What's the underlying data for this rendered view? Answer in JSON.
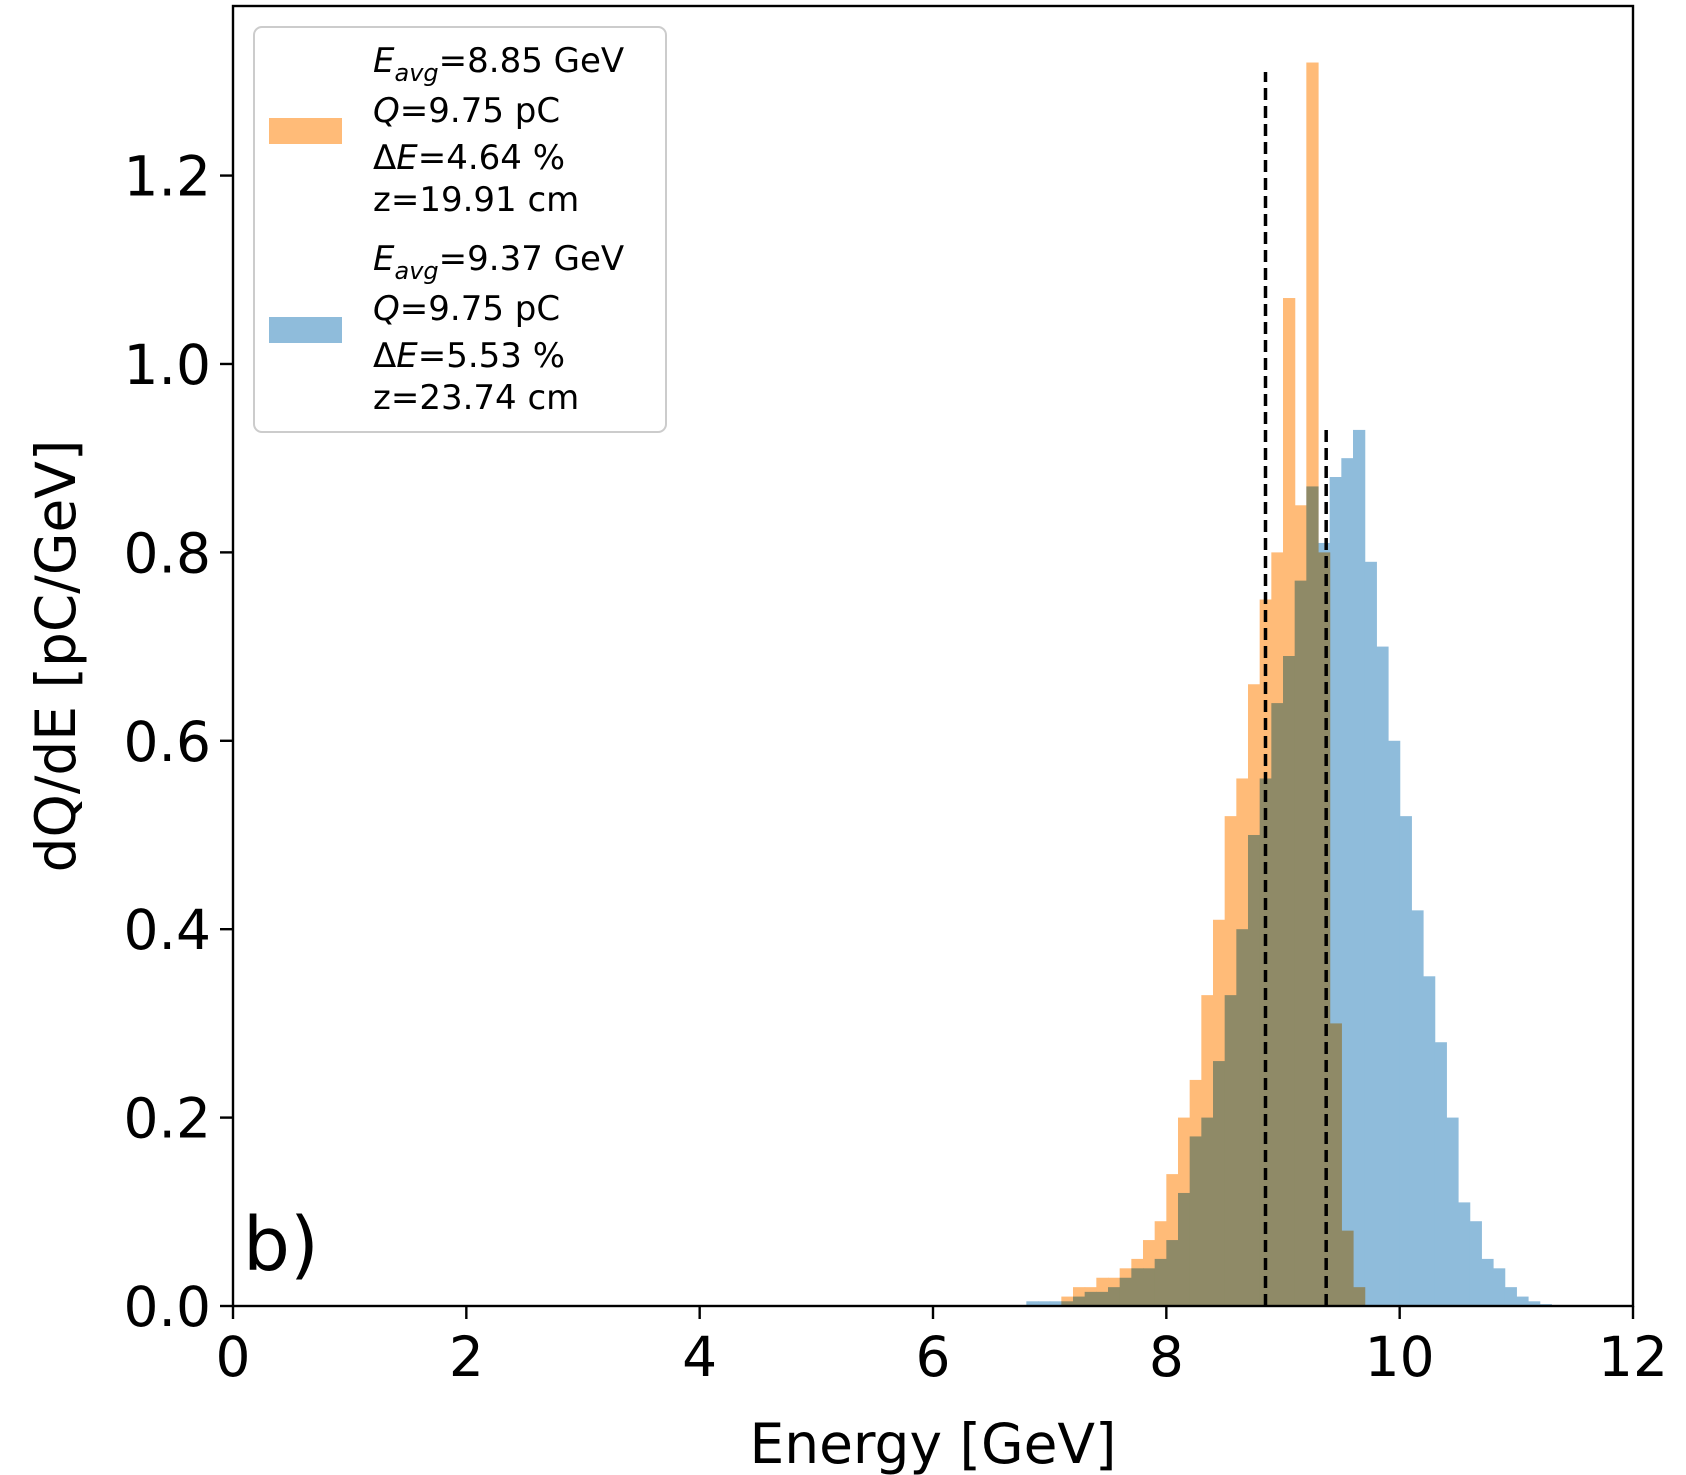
{
  "chart_data": {
    "type": "histogram",
    "panel_label": "b)",
    "xlabel": "Energy [GeV]",
    "ylabel": "dQ/dE [pC/GeV]",
    "xlim": [
      0,
      12
    ],
    "ylim": [
      0,
      1.38
    ],
    "xticks": [
      0,
      2,
      4,
      6,
      8,
      10,
      12
    ],
    "yticks": [
      0.0,
      0.2,
      0.4,
      0.6,
      0.8,
      1.0,
      1.2
    ],
    "xtick_labels": [
      "0",
      "2",
      "4",
      "6",
      "8",
      "10",
      "12"
    ],
    "ytick_labels": [
      "0.0",
      "0.2",
      "0.4",
      "0.6",
      "0.8",
      "1.0",
      "1.2"
    ],
    "bin_width": 0.1,
    "series": [
      {
        "name": "z=19.91 cm",
        "color": "#ffbb78",
        "legend_lines": {
          "e_avg_symbol": "E",
          "e_avg_sub": "avg",
          "e_avg_value": "=8.85 GeV",
          "q_symbol": "Q",
          "q_value": "=9.75 pC",
          "de_prefix": "Δ",
          "de_symbol": "E",
          "de_value": "=4.64 %",
          "z_line": "z=19.91 cm"
        },
        "mean": 8.85,
        "mean_line_height": 1.31,
        "bin_start": 7.1,
        "values": [
          0.01,
          0.02,
          0.02,
          0.03,
          0.03,
          0.04,
          0.05,
          0.07,
          0.09,
          0.14,
          0.2,
          0.24,
          0.33,
          0.41,
          0.52,
          0.56,
          0.66,
          0.75,
          0.8,
          1.07,
          0.85,
          1.32,
          0.8,
          0.3,
          0.08,
          0.02
        ]
      },
      {
        "name": "z=23.74 cm",
        "color": "#8fbcdb",
        "legend_lines": {
          "e_avg_symbol": "E",
          "e_avg_sub": "avg",
          "e_avg_value": "=9.37 GeV",
          "q_symbol": "Q",
          "q_value": "=9.75 pC",
          "de_prefix": "Δ",
          "de_symbol": "E",
          "de_value": "=5.53 %",
          "z_line": "z=23.74 cm"
        },
        "mean": 9.37,
        "mean_line_height": 0.93,
        "bin_start": 6.8,
        "values": [
          0.005,
          0.005,
          0.005,
          0.005,
          0.01,
          0.015,
          0.015,
          0.02,
          0.03,
          0.04,
          0.04,
          0.05,
          0.07,
          0.12,
          0.18,
          0.2,
          0.26,
          0.33,
          0.4,
          0.5,
          0.56,
          0.64,
          0.69,
          0.77,
          0.87,
          0.81,
          0.88,
          0.9,
          0.93,
          0.79,
          0.7,
          0.6,
          0.52,
          0.42,
          0.35,
          0.28,
          0.2,
          0.11,
          0.09,
          0.05,
          0.04,
          0.02,
          0.01,
          0.005,
          0.002
        ]
      }
    ],
    "legend_position": "upper-left"
  }
}
